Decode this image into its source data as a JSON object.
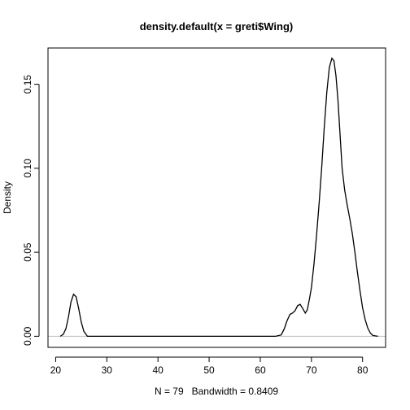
{
  "chart_data": {
    "type": "line",
    "title": "density.default(x = greti$Wing)",
    "xlabel": "N = 79   Bandwidth = 0.8409",
    "ylabel": "Density",
    "xlim": [
      18.5,
      84.5
    ],
    "ylim": [
      -0.0066,
      0.1716
    ],
    "x_ticks": [
      20,
      30,
      40,
      50,
      60,
      70,
      80
    ],
    "x_tick_labels": [
      "20",
      "30",
      "40",
      "50",
      "60",
      "70",
      "80"
    ],
    "y_ticks": [
      0.0,
      0.05,
      0.1,
      0.15
    ],
    "y_tick_labels": [
      "0.00",
      "0.05",
      "0.10",
      "0.15"
    ],
    "baseline": 0,
    "baseline_color": "#bebebe",
    "line_color": "#000000",
    "grid": false,
    "series": [
      {
        "x": [
          20.9,
          21.5,
          22.0,
          22.5,
          23.0,
          23.5,
          24.0,
          24.5,
          25.0,
          25.5,
          26.2,
          27.0,
          30,
          40,
          50,
          60,
          63.0,
          64.1,
          64.7,
          65.2,
          65.8,
          66.3,
          66.8,
          67.3,
          67.8,
          68.3,
          68.8,
          69.2,
          69.6,
          70.0,
          70.5,
          71.0,
          71.5,
          72.0,
          72.5,
          73.0,
          73.5,
          74.0,
          74.4,
          74.8,
          75.2,
          75.6,
          76.0,
          76.5,
          77.0,
          77.5,
          78.0,
          78.5,
          79.0,
          79.5,
          80.0,
          80.5,
          81.0,
          81.5,
          82.0,
          83.0
        ],
        "y": [
          0.0,
          0.0012,
          0.0045,
          0.0115,
          0.0205,
          0.025,
          0.0235,
          0.0165,
          0.0085,
          0.003,
          0.0,
          0.0,
          0.0,
          0.0,
          0.0,
          0.0,
          0.0,
          0.0008,
          0.0045,
          0.009,
          0.013,
          0.0138,
          0.0152,
          0.0182,
          0.019,
          0.0165,
          0.0138,
          0.0158,
          0.022,
          0.029,
          0.043,
          0.06,
          0.079,
          0.1,
          0.124,
          0.145,
          0.16,
          0.1655,
          0.164,
          0.155,
          0.14,
          0.12,
          0.1,
          0.087,
          0.078,
          0.07,
          0.061,
          0.05,
          0.038,
          0.027,
          0.017,
          0.01,
          0.005,
          0.002,
          0.0005,
          0.0
        ]
      }
    ]
  }
}
